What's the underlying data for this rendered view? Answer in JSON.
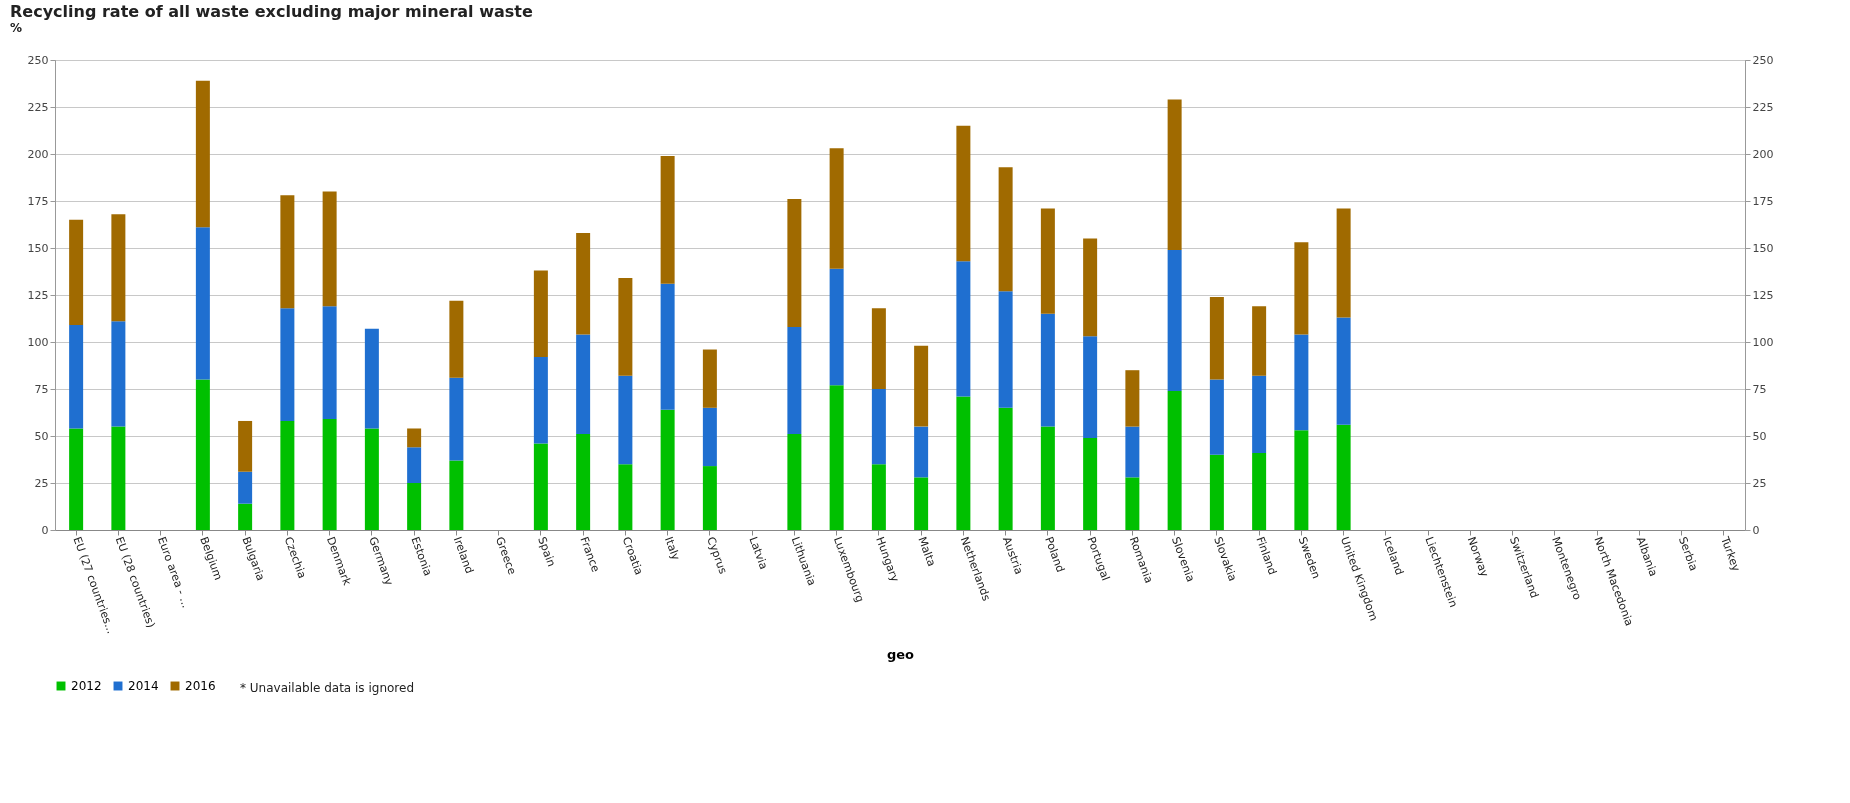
{
  "chart_data": {
    "type": "bar",
    "stacked": true,
    "title": "Recycling rate of all waste excluding major mineral waste",
    "ylabel": "%",
    "xlabel": "geo",
    "categories": [
      "EU (27 countries...",
      "EU (28 countries)",
      "Euro area - ...",
      "Belgium",
      "Bulgaria",
      "Czechia",
      "Denmark",
      "Germany",
      "Estonia",
      "Ireland",
      "Greece",
      "Spain",
      "France",
      "Croatia",
      "Italy",
      "Cyprus",
      "Latvia",
      "Lithuania",
      "Luxembourg",
      "Hungary",
      "Malta",
      "Netherlands",
      "Austria",
      "Poland",
      "Portugal",
      "Romania",
      "Slovenia",
      "Slovakia",
      "Finland",
      "Sweden",
      "United Kingdom",
      "Iceland",
      "Liechtenstein",
      "Norway",
      "Switzerland",
      "Montenegro",
      "North Macedonia",
      "Albania",
      "Serbia",
      "Turkey"
    ],
    "series": [
      {
        "name": "2012",
        "color": "#00c000",
        "values": [
          54,
          55,
          null,
          80,
          14,
          58,
          59,
          54,
          25,
          37,
          null,
          46,
          51,
          35,
          64,
          34,
          null,
          51,
          77,
          35,
          28,
          71,
          65,
          55,
          49,
          28,
          74,
          40,
          41,
          53,
          56,
          null,
          null,
          null,
          null,
          null,
          null,
          null,
          null,
          null
        ]
      },
      {
        "name": "2014",
        "color": "#1f6fd0",
        "values": [
          55,
          56,
          null,
          81,
          17,
          60,
          60,
          53,
          19,
          44,
          null,
          46,
          53,
          47,
          67,
          31,
          null,
          57,
          62,
          40,
          27,
          72,
          62,
          60,
          54,
          27,
          75,
          40,
          41,
          51,
          57,
          null,
          null,
          null,
          null,
          null,
          null,
          null,
          null,
          null
        ]
      },
      {
        "name": "2016",
        "color": "#a06a00",
        "values": [
          56,
          57,
          null,
          78,
          27,
          60,
          61,
          null,
          10,
          41,
          null,
          46,
          54,
          52,
          68,
          31,
          null,
          68,
          64,
          43,
          43,
          72,
          66,
          56,
          52,
          30,
          80,
          44,
          37,
          49,
          58,
          null,
          null,
          null,
          null,
          null,
          null,
          null,
          null,
          null
        ]
      }
    ],
    "ylim": [
      0,
      250
    ],
    "yticks": [
      0,
      25,
      50,
      75,
      100,
      125,
      150,
      175,
      200,
      225,
      250
    ],
    "y2lim": [
      0,
      250
    ],
    "y2ticks": [
      0,
      25,
      50,
      75,
      100,
      125,
      150,
      175,
      200,
      225,
      250
    ],
    "grid": "y",
    "legend": "bottom",
    "annotations": [
      "* Unavailable data is ignored"
    ]
  }
}
